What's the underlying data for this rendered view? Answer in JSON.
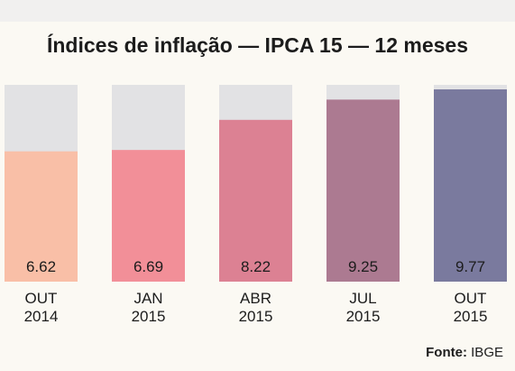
{
  "chart_data": {
    "type": "bar",
    "title": "Índices de inflação — IPCA 15 — 12 meses",
    "categories": [
      [
        "OUT",
        "2014"
      ],
      [
        "JAN",
        "2015"
      ],
      [
        "ABR",
        "2015"
      ],
      [
        "JUL",
        "2015"
      ],
      [
        "OUT",
        "2015"
      ]
    ],
    "values": [
      6.62,
      6.69,
      8.22,
      9.25,
      9.77
    ],
    "value_labels": [
      "6.62",
      "6.69",
      "8.22",
      "9.25",
      "9.77"
    ],
    "ylim": [
      0,
      10
    ],
    "grid": false,
    "legend": "none",
    "colors": {
      "bars": [
        "#f9bfa7",
        "#f28f98",
        "#dc8193",
        "#ac7a91",
        "#7a7a9e"
      ],
      "background_bar": "#e2e2e4",
      "text": "#1c1c1c"
    }
  },
  "source": {
    "label": "Fonte:",
    "value": "IBGE"
  }
}
